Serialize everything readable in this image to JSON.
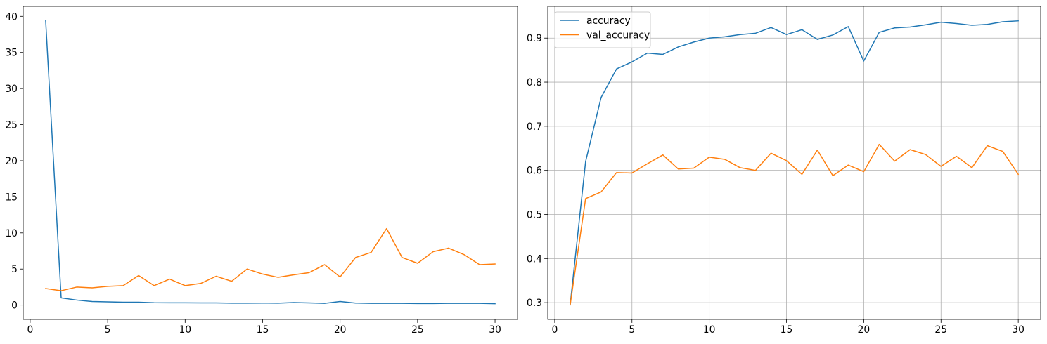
{
  "chart_data": [
    {
      "type": "line",
      "grid": false,
      "legend": null,
      "xlim": [
        -0.45,
        31.45
      ],
      "ylim": [
        -1.98,
        41.39
      ],
      "xticks": [
        0,
        5,
        10,
        15,
        20,
        25,
        30
      ],
      "yticks": [
        0,
        5,
        10,
        15,
        20,
        25,
        30,
        35,
        40
      ],
      "x": [
        1,
        2,
        3,
        4,
        5,
        6,
        7,
        8,
        9,
        10,
        11,
        12,
        13,
        14,
        15,
        16,
        17,
        18,
        19,
        20,
        21,
        22,
        23,
        24,
        25,
        26,
        27,
        28,
        29,
        30
      ],
      "series": [
        {
          "color": "#1f77b4",
          "values": [
            39.4,
            1.0,
            0.7,
            0.5,
            0.45,
            0.4,
            0.4,
            0.33,
            0.32,
            0.32,
            0.3,
            0.3,
            0.27,
            0.27,
            0.28,
            0.27,
            0.35,
            0.3,
            0.25,
            0.5,
            0.28,
            0.25,
            0.25,
            0.25,
            0.22,
            0.22,
            0.25,
            0.25,
            0.24,
            0.2
          ]
        },
        {
          "color": "#ff7f0e",
          "values": [
            2.3,
            2.0,
            2.5,
            2.4,
            2.6,
            2.7,
            4.1,
            2.7,
            3.6,
            2.7,
            3.0,
            4.0,
            3.3,
            5.0,
            4.3,
            3.85,
            4.2,
            4.5,
            5.6,
            3.9,
            6.6,
            7.3,
            10.6,
            6.6,
            5.8,
            7.4,
            7.9,
            7.0,
            5.6,
            5.7
          ]
        }
      ]
    },
    {
      "type": "line",
      "grid": true,
      "legend": "top-left",
      "xlim": [
        -0.45,
        31.45
      ],
      "ylim": [
        0.262,
        0.972
      ],
      "xticks": [
        0,
        5,
        10,
        15,
        20,
        25,
        30
      ],
      "yticks": [
        0.3,
        0.4,
        0.5,
        0.6,
        0.7,
        0.8,
        0.9
      ],
      "x": [
        1,
        2,
        3,
        4,
        5,
        6,
        7,
        8,
        9,
        10,
        11,
        12,
        13,
        14,
        15,
        16,
        17,
        18,
        19,
        20,
        21,
        22,
        23,
        24,
        25,
        26,
        27,
        28,
        29,
        30
      ],
      "series": [
        {
          "name": "accuracy",
          "color": "#1f77b4",
          "values": [
            0.295,
            0.62,
            0.765,
            0.83,
            0.846,
            0.866,
            0.863,
            0.88,
            0.891,
            0.9,
            0.903,
            0.908,
            0.911,
            0.924,
            0.908,
            0.919,
            0.897,
            0.907,
            0.926,
            0.848,
            0.913,
            0.923,
            0.925,
            0.93,
            0.936,
            0.933,
            0.929,
            0.931,
            0.937,
            0.939
          ]
        },
        {
          "name": "val_accuracy",
          "color": "#ff7f0e",
          "values": [
            0.295,
            0.536,
            0.551,
            0.595,
            0.594,
            0.615,
            0.635,
            0.603,
            0.605,
            0.63,
            0.625,
            0.606,
            0.6,
            0.639,
            0.622,
            0.591,
            0.646,
            0.588,
            0.612,
            0.597,
            0.659,
            0.621,
            0.647,
            0.636,
            0.609,
            0.632,
            0.606,
            0.656,
            0.643,
            0.591
          ]
        }
      ]
    }
  ]
}
